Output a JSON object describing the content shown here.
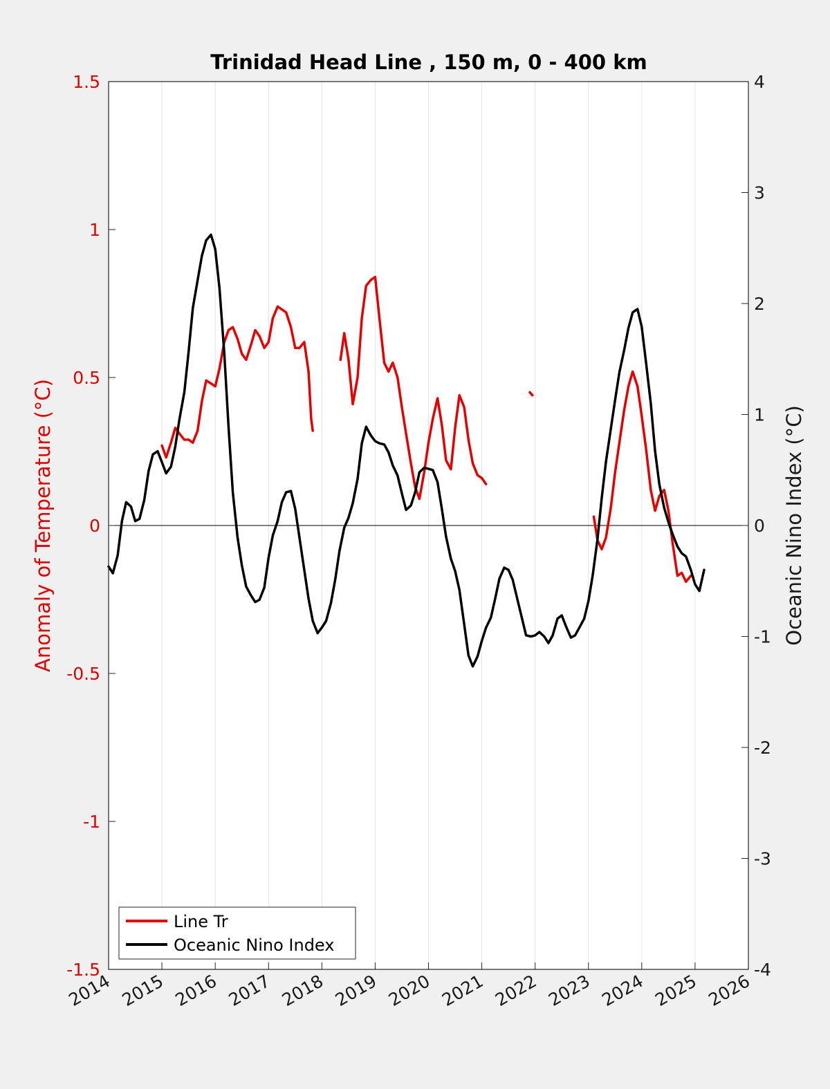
{
  "chart_data": {
    "type": "line",
    "title": "Trinidad Head Line , 150 m, 0 - 400 km",
    "xlabel": "",
    "ylabel_left": "Anomaly of Temperature (°C)",
    "ylabel_right": "Oceanic Nino Index (°C)",
    "xlim": [
      2014,
      2026
    ],
    "ylim_left": [
      -1.5,
      1.5
    ],
    "ylim_right": [
      -4,
      4
    ],
    "x_ticks": [
      "2014",
      "2015",
      "2016",
      "2017",
      "2018",
      "2019",
      "2020",
      "2021",
      "2022",
      "2023",
      "2024",
      "2025",
      "2026"
    ],
    "y_ticks_left": [
      "1.5",
      "1",
      "0.5",
      "0",
      "-0.5",
      "-1",
      "-1.5"
    ],
    "y_ticks_right": [
      "4",
      "3",
      "2",
      "1",
      "0",
      "-1",
      "-2",
      "-3",
      "-4"
    ],
    "grid": "vertical",
    "legend_position": "bottom-left",
    "zero_line": true,
    "series": [
      {
        "name": "Line Tr",
        "color": "#e80000",
        "axis": "left",
        "segments": [
          [
            [
              2015.0,
              0.27
            ],
            [
              2015.08,
              0.23
            ],
            [
              2015.17,
              0.28
            ],
            [
              2015.25,
              0.33
            ],
            [
              2015.33,
              0.31
            ],
            [
              2015.42,
              0.29
            ],
            [
              2015.5,
              0.29
            ],
            [
              2015.58,
              0.28
            ],
            [
              2015.67,
              0.32
            ],
            [
              2015.75,
              0.42
            ],
            [
              2015.83,
              0.49
            ],
            [
              2015.92,
              0.48
            ],
            [
              2016.0,
              0.47
            ],
            [
              2016.08,
              0.53
            ],
            [
              2016.17,
              0.62
            ],
            [
              2016.25,
              0.66
            ],
            [
              2016.33,
              0.67
            ],
            [
              2016.42,
              0.63
            ],
            [
              2016.5,
              0.58
            ],
            [
              2016.58,
              0.56
            ],
            [
              2016.67,
              0.61
            ],
            [
              2016.75,
              0.66
            ],
            [
              2016.83,
              0.64
            ],
            [
              2016.92,
              0.6
            ],
            [
              2017.0,
              0.62
            ],
            [
              2017.08,
              0.7
            ],
            [
              2017.17,
              0.74
            ],
            [
              2017.25,
              0.73
            ],
            [
              2017.33,
              0.72
            ],
            [
              2017.42,
              0.67
            ],
            [
              2017.5,
              0.6
            ],
            [
              2017.58,
              0.6
            ],
            [
              2017.67,
              0.62
            ],
            [
              2017.75,
              0.52
            ],
            [
              2017.8,
              0.36
            ],
            [
              2017.83,
              0.32
            ]
          ],
          [
            [
              2018.35,
              0.56
            ],
            [
              2018.42,
              0.65
            ],
            [
              2018.5,
              0.56
            ],
            [
              2018.58,
              0.41
            ],
            [
              2018.67,
              0.5
            ],
            [
              2018.75,
              0.7
            ],
            [
              2018.83,
              0.81
            ],
            [
              2018.92,
              0.83
            ],
            [
              2019.0,
              0.84
            ],
            [
              2019.08,
              0.7
            ],
            [
              2019.17,
              0.55
            ],
            [
              2019.25,
              0.52
            ],
            [
              2019.33,
              0.55
            ],
            [
              2019.42,
              0.5
            ],
            [
              2019.5,
              0.4
            ],
            [
              2019.58,
              0.31
            ],
            [
              2019.67,
              0.21
            ],
            [
              2019.75,
              0.13
            ],
            [
              2019.83,
              0.09
            ],
            [
              2019.92,
              0.18
            ],
            [
              2020.0,
              0.28
            ],
            [
              2020.08,
              0.36
            ],
            [
              2020.17,
              0.43
            ],
            [
              2020.25,
              0.34
            ],
            [
              2020.33,
              0.22
            ],
            [
              2020.42,
              0.19
            ],
            [
              2020.5,
              0.33
            ],
            [
              2020.58,
              0.44
            ],
            [
              2020.67,
              0.4
            ],
            [
              2020.75,
              0.29
            ],
            [
              2020.83,
              0.21
            ],
            [
              2020.92,
              0.17
            ],
            [
              2021.0,
              0.16
            ],
            [
              2021.08,
              0.14
            ]
          ],
          [
            [
              2021.9,
              0.45
            ],
            [
              2021.95,
              0.44
            ]
          ],
          [
            [
              2023.1,
              0.03
            ],
            [
              2023.17,
              -0.05
            ],
            [
              2023.25,
              -0.08
            ],
            [
              2023.33,
              -0.04
            ],
            [
              2023.42,
              0.06
            ],
            [
              2023.5,
              0.18
            ],
            [
              2023.58,
              0.28
            ],
            [
              2023.67,
              0.39
            ],
            [
              2023.75,
              0.47
            ],
            [
              2023.83,
              0.52
            ],
            [
              2023.92,
              0.47
            ],
            [
              2024.0,
              0.37
            ],
            [
              2024.08,
              0.26
            ],
            [
              2024.17,
              0.12
            ],
            [
              2024.25,
              0.05
            ],
            [
              2024.33,
              0.1
            ],
            [
              2024.42,
              0.12
            ],
            [
              2024.5,
              0.05
            ],
            [
              2024.58,
              -0.06
            ],
            [
              2024.67,
              -0.17
            ],
            [
              2024.75,
              -0.16
            ],
            [
              2024.83,
              -0.19
            ],
            [
              2024.92,
              -0.17
            ]
          ]
        ]
      },
      {
        "name": "Oceanic Nino Index",
        "color": "#000000",
        "axis": "right",
        "segments": [
          [
            [
              2014.0,
              -0.37
            ],
            [
              2014.08,
              -0.43
            ],
            [
              2014.17,
              -0.27
            ],
            [
              2014.25,
              0.04
            ],
            [
              2014.33,
              0.21
            ],
            [
              2014.42,
              0.17
            ],
            [
              2014.5,
              0.04
            ],
            [
              2014.58,
              0.06
            ],
            [
              2014.67,
              0.23
            ],
            [
              2014.75,
              0.49
            ],
            [
              2014.83,
              0.64
            ],
            [
              2014.92,
              0.67
            ],
            [
              2015.0,
              0.57
            ],
            [
              2015.08,
              0.47
            ],
            [
              2015.17,
              0.53
            ],
            [
              2015.25,
              0.71
            ],
            [
              2015.33,
              0.96
            ],
            [
              2015.42,
              1.2
            ],
            [
              2015.5,
              1.56
            ],
            [
              2015.58,
              1.96
            ],
            [
              2015.67,
              2.21
            ],
            [
              2015.75,
              2.43
            ],
            [
              2015.83,
              2.57
            ],
            [
              2015.92,
              2.62
            ],
            [
              2016.0,
              2.49
            ],
            [
              2016.08,
              2.14
            ],
            [
              2016.17,
              1.55
            ],
            [
              2016.25,
              0.89
            ],
            [
              2016.33,
              0.3
            ],
            [
              2016.42,
              -0.11
            ],
            [
              2016.5,
              -0.36
            ],
            [
              2016.58,
              -0.55
            ],
            [
              2016.67,
              -0.63
            ],
            [
              2016.75,
              -0.69
            ],
            [
              2016.83,
              -0.67
            ],
            [
              2016.92,
              -0.56
            ],
            [
              2017.0,
              -0.29
            ],
            [
              2017.08,
              -0.09
            ],
            [
              2017.17,
              0.04
            ],
            [
              2017.25,
              0.21
            ],
            [
              2017.33,
              0.3
            ],
            [
              2017.42,
              0.31
            ],
            [
              2017.5,
              0.15
            ],
            [
              2017.58,
              -0.11
            ],
            [
              2017.67,
              -0.4
            ],
            [
              2017.75,
              -0.66
            ],
            [
              2017.83,
              -0.86
            ],
            [
              2017.92,
              -0.97
            ],
            [
              2018.0,
              -0.92
            ],
            [
              2018.08,
              -0.86
            ],
            [
              2018.17,
              -0.7
            ],
            [
              2018.25,
              -0.49
            ],
            [
              2018.33,
              -0.23
            ],
            [
              2018.42,
              -0.02
            ],
            [
              2018.5,
              0.07
            ],
            [
              2018.58,
              0.2
            ],
            [
              2018.67,
              0.42
            ],
            [
              2018.75,
              0.74
            ],
            [
              2018.83,
              0.89
            ],
            [
              2018.92,
              0.81
            ],
            [
              2019.0,
              0.76
            ],
            [
              2019.08,
              0.74
            ],
            [
              2019.17,
              0.73
            ],
            [
              2019.25,
              0.66
            ],
            [
              2019.33,
              0.54
            ],
            [
              2019.42,
              0.45
            ],
            [
              2019.5,
              0.29
            ],
            [
              2019.58,
              0.14
            ],
            [
              2019.67,
              0.18
            ],
            [
              2019.75,
              0.3
            ],
            [
              2019.83,
              0.48
            ],
            [
              2019.92,
              0.52
            ],
            [
              2020.0,
              0.51
            ],
            [
              2020.08,
              0.5
            ],
            [
              2020.17,
              0.39
            ],
            [
              2020.25,
              0.15
            ],
            [
              2020.33,
              -0.1
            ],
            [
              2020.42,
              -0.3
            ],
            [
              2020.5,
              -0.41
            ],
            [
              2020.58,
              -0.58
            ],
            [
              2020.67,
              -0.89
            ],
            [
              2020.75,
              -1.17
            ],
            [
              2020.83,
              -1.27
            ],
            [
              2020.92,
              -1.18
            ],
            [
              2021.0,
              -1.04
            ],
            [
              2021.08,
              -0.92
            ],
            [
              2021.17,
              -0.83
            ],
            [
              2021.25,
              -0.66
            ],
            [
              2021.33,
              -0.48
            ],
            [
              2021.42,
              -0.38
            ],
            [
              2021.5,
              -0.4
            ],
            [
              2021.58,
              -0.49
            ],
            [
              2021.67,
              -0.67
            ],
            [
              2021.75,
              -0.83
            ],
            [
              2021.83,
              -0.99
            ],
            [
              2021.92,
              -1.0
            ],
            [
              2022.0,
              -0.99
            ],
            [
              2022.08,
              -0.96
            ],
            [
              2022.17,
              -1.0
            ],
            [
              2022.25,
              -1.06
            ],
            [
              2022.33,
              -0.99
            ],
            [
              2022.42,
              -0.84
            ],
            [
              2022.5,
              -0.81
            ],
            [
              2022.58,
              -0.91
            ],
            [
              2022.67,
              -1.01
            ],
            [
              2022.75,
              -0.99
            ],
            [
              2022.83,
              -0.92
            ],
            [
              2022.92,
              -0.84
            ],
            [
              2023.0,
              -0.68
            ],
            [
              2023.08,
              -0.45
            ],
            [
              2023.17,
              -0.12
            ],
            [
              2023.25,
              0.25
            ],
            [
              2023.33,
              0.58
            ],
            [
              2023.42,
              0.87
            ],
            [
              2023.5,
              1.13
            ],
            [
              2023.58,
              1.38
            ],
            [
              2023.67,
              1.58
            ],
            [
              2023.75,
              1.78
            ],
            [
              2023.83,
              1.92
            ],
            [
              2023.92,
              1.95
            ],
            [
              2024.0,
              1.79
            ],
            [
              2024.08,
              1.47
            ],
            [
              2024.17,
              1.1
            ],
            [
              2024.25,
              0.67
            ],
            [
              2024.33,
              0.37
            ],
            [
              2024.42,
              0.16
            ],
            [
              2024.5,
              0.03
            ],
            [
              2024.58,
              -0.08
            ],
            [
              2024.67,
              -0.19
            ],
            [
              2024.75,
              -0.25
            ],
            [
              2024.83,
              -0.28
            ],
            [
              2024.92,
              -0.4
            ],
            [
              2025.0,
              -0.53
            ],
            [
              2025.08,
              -0.59
            ],
            [
              2025.17,
              -0.4
            ]
          ]
        ]
      }
    ]
  }
}
